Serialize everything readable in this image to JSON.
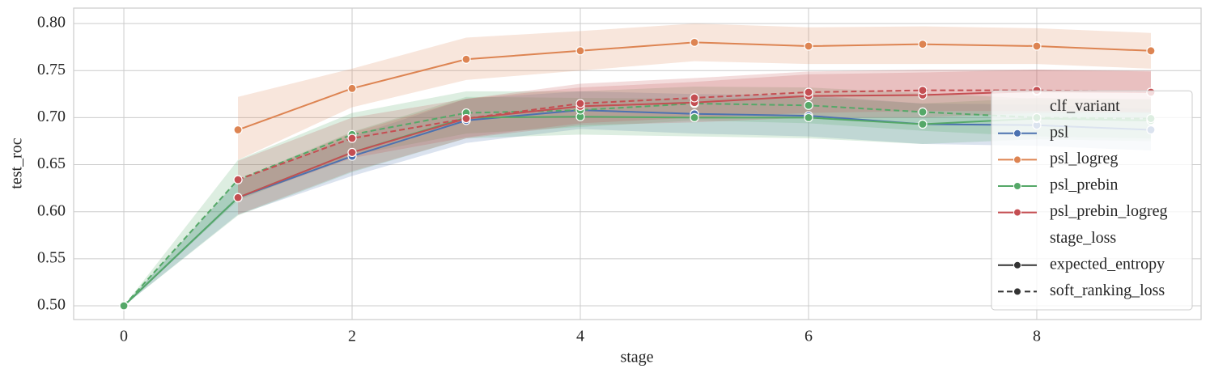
{
  "chart_data": {
    "type": "line",
    "x_label": "stage",
    "y_label": "test_roc",
    "x": [
      0,
      1,
      2,
      3,
      4,
      5,
      6,
      7,
      8,
      9
    ],
    "xlim": [
      -0.44,
      9.44
    ],
    "xticks": [
      0,
      2,
      4,
      6,
      8
    ],
    "ylim": [
      0.4854,
      0.8164
    ],
    "yticks": [
      {
        "value": 0.5,
        "label": "0.50"
      },
      {
        "value": 0.55,
        "label": "0.55"
      },
      {
        "value": 0.6,
        "label": "0.60"
      },
      {
        "value": 0.65,
        "label": "0.65"
      },
      {
        "value": 0.7,
        "label": "0.70"
      },
      {
        "value": 0.75,
        "label": "0.75"
      },
      {
        "value": 0.8,
        "label": "0.80"
      }
    ],
    "grid": true,
    "series": [
      {
        "color": "#4c72b0",
        "dash": "solid",
        "values": [
          0.5,
          0.615,
          0.659,
          0.697,
          0.708,
          0.704,
          0.702,
          0.693,
          0.692,
          0.687
        ],
        "lower": [
          0.5,
          0.597,
          0.638,
          0.673,
          0.688,
          0.683,
          0.68,
          0.672,
          0.67,
          0.665
        ],
        "upper": [
          0.5,
          0.633,
          0.68,
          0.72,
          0.728,
          0.725,
          0.724,
          0.715,
          0.714,
          0.709
        ]
      },
      {
        "color": "#dd8452",
        "dash": "solid",
        "values": [
          null,
          0.687,
          0.731,
          0.762,
          0.771,
          0.78,
          0.776,
          0.778,
          0.776,
          0.771
        ],
        "lower": [
          null,
          0.655,
          0.711,
          0.74,
          0.75,
          0.76,
          0.757,
          0.757,
          0.757,
          0.752
        ],
        "upper": [
          null,
          0.722,
          0.752,
          0.785,
          0.792,
          0.8,
          0.796,
          0.797,
          0.795,
          0.79
        ]
      },
      {
        "color": "#55a868",
        "dash": "solid",
        "values": [
          0.5,
          0.615,
          0.663,
          0.7,
          0.701,
          0.7,
          0.7,
          0.693,
          0.699,
          0.697
        ],
        "lower": [
          0.5,
          0.596,
          0.642,
          0.678,
          0.682,
          0.68,
          0.678,
          0.672,
          0.677,
          0.675
        ],
        "upper": [
          0.5,
          0.634,
          0.685,
          0.722,
          0.721,
          0.72,
          0.722,
          0.715,
          0.721,
          0.719
        ]
      },
      {
        "color": "#55a868",
        "dash": "dashed",
        "values": [
          0.5,
          0.634,
          0.682,
          0.705,
          0.708,
          0.715,
          0.713,
          0.706,
          0.7,
          0.699
        ],
        "lower": [
          0.5,
          0.612,
          0.66,
          0.683,
          0.69,
          0.697,
          0.694,
          0.686,
          0.68,
          0.678
        ],
        "upper": [
          0.5,
          0.655,
          0.705,
          0.728,
          0.728,
          0.733,
          0.732,
          0.726,
          0.72,
          0.72
        ]
      },
      {
        "color": "#c44e52",
        "dash": "solid",
        "values": [
          null,
          0.615,
          0.663,
          0.699,
          0.712,
          0.716,
          0.723,
          0.724,
          0.728,
          0.727
        ],
        "lower": [
          null,
          0.597,
          0.643,
          0.678,
          0.692,
          0.695,
          0.7,
          0.7,
          0.705,
          0.705
        ],
        "upper": [
          null,
          0.633,
          0.684,
          0.72,
          0.732,
          0.738,
          0.746,
          0.748,
          0.751,
          0.75
        ]
      },
      {
        "color": "#c44e52",
        "dash": "dashed",
        "values": [
          null,
          0.634,
          0.678,
          0.699,
          0.715,
          0.721,
          0.727,
          0.729,
          0.729,
          0.727
        ],
        "lower": [
          null,
          0.614,
          0.657,
          0.679,
          0.694,
          0.7,
          0.705,
          0.707,
          0.707,
          0.706
        ],
        "upper": [
          null,
          0.654,
          0.7,
          0.72,
          0.736,
          0.742,
          0.749,
          0.751,
          0.751,
          0.749
        ]
      }
    ],
    "legend": {
      "position": "lower right",
      "sections": [
        {
          "title": "clf_variant",
          "entries": [
            {
              "label": "psl",
              "color": "#4c72b0"
            },
            {
              "label": "psl_logreg",
              "color": "#dd8452"
            },
            {
              "label": "psl_prebin",
              "color": "#55a868"
            },
            {
              "label": "psl_prebin_logreg",
              "color": "#c44e52"
            }
          ]
        },
        {
          "title": "stage_loss",
          "entries": [
            {
              "label": "expected_entropy",
              "color": "#333333",
              "dash": "solid"
            },
            {
              "label": "soft_ranking_loss",
              "color": "#333333",
              "dash": "dashed"
            }
          ]
        }
      ]
    }
  }
}
